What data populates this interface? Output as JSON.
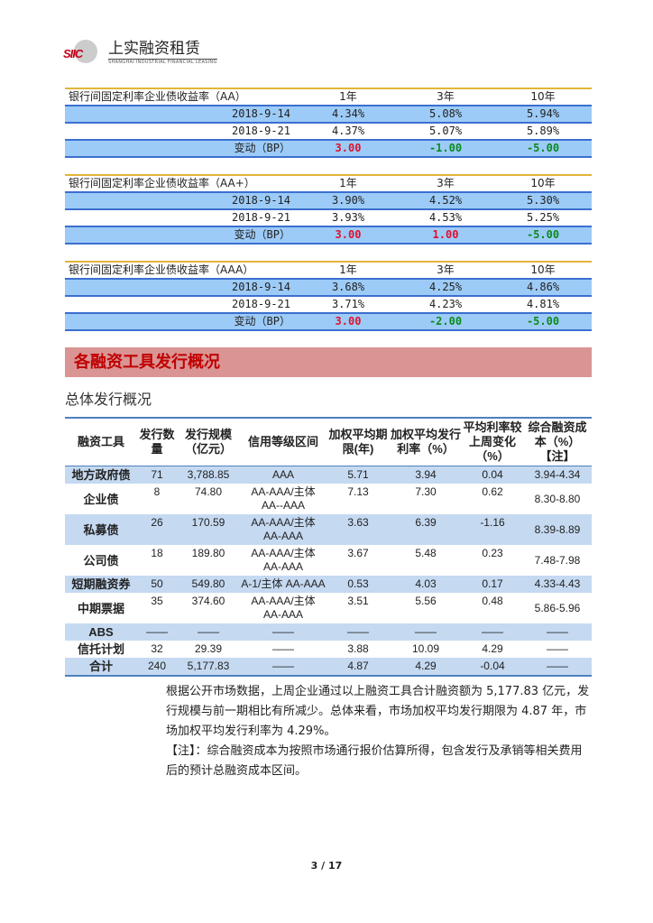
{
  "header": {
    "logo_mark": "SIIC",
    "company": "上实融资租赁",
    "company_en": "SHANGHAI INDUSTRIAL FINANCIAL LEASING"
  },
  "yield_tables": [
    {
      "title": "银行间固定利率企业债收益率（AA）",
      "cols": [
        "1年",
        "3年",
        "10年"
      ],
      "rows": [
        {
          "date": "2018-9-14",
          "v": [
            "4.34%",
            "5.08%",
            "5.94%"
          ]
        },
        {
          "date": "2018-9-21",
          "v": [
            "4.37%",
            "5.07%",
            "5.89%"
          ]
        }
      ],
      "change_label": "变动（BP）",
      "change": [
        "3.00",
        "-1.00",
        "-5.00"
      ]
    },
    {
      "title": "银行间固定利率企业债收益率（AA+）",
      "cols": [
        "1年",
        "3年",
        "10年"
      ],
      "rows": [
        {
          "date": "2018-9-14",
          "v": [
            "3.90%",
            "4.52%",
            "5.30%"
          ]
        },
        {
          "date": "2018-9-21",
          "v": [
            "3.93%",
            "4.53%",
            "5.25%"
          ]
        }
      ],
      "change_label": "变动（BP）",
      "change": [
        "3.00",
        "1.00",
        "-5.00"
      ]
    },
    {
      "title": "银行间固定利率企业债收益率（AAA）",
      "cols": [
        "1年",
        "3年",
        "10年"
      ],
      "rows": [
        {
          "date": "2018-9-14",
          "v": [
            "3.68%",
            "4.25%",
            "4.86%"
          ]
        },
        {
          "date": "2018-9-21",
          "v": [
            "3.71%",
            "4.23%",
            "4.81%"
          ]
        }
      ],
      "change_label": "变动（BP）",
      "change": [
        "3.00",
        "-2.00",
        "-5.00"
      ]
    }
  ],
  "colors": {
    "up": "#e0102c",
    "down": "#0a8a1e",
    "row_blue": "#9dcbf7",
    "section_bg": "#da9494",
    "section_text": "#c00000"
  },
  "section": {
    "title": "各融资工具发行概况",
    "subtitle": "总体发行概况"
  },
  "issuance": {
    "headers": [
      "融资工具",
      "发行数量",
      "发行规模（亿元）",
      "信用等级区间",
      "加权平均期限(年)",
      "加权平均发行利率（%）",
      "平均利率较上周变化（%）",
      "综合融资成本（%）【注】"
    ],
    "rows": [
      [
        "地方政府债",
        "71",
        "3,788.85",
        "AAA",
        "5.71",
        "3.94",
        "0.04",
        "3.94-4.34"
      ],
      [
        "企业债",
        "8",
        "74.80",
        "AA-AAA/主体 AA--AAA",
        "7.13",
        "7.30",
        "0.62",
        "8.30-8.80"
      ],
      [
        "私募债",
        "26",
        "170.59",
        "AA-AAA/主体 AA-AAA",
        "3.63",
        "6.39",
        "-1.16",
        "8.39-8.89"
      ],
      [
        "公司债",
        "18",
        "189.80",
        "AA-AAA/主体 AA-AAA",
        "3.67",
        "5.48",
        "0.23",
        "7.48-7.98"
      ],
      [
        "短期融资券",
        "50",
        "549.80",
        "A-1/主体 AA-AAA",
        "0.53",
        "4.03",
        "0.17",
        "4.33-4.43"
      ],
      [
        "中期票据",
        "35",
        "374.60",
        "AA-AAA/主体 AA-AAA",
        "3.51",
        "5.56",
        "0.48",
        "5.86-5.96"
      ],
      [
        "ABS",
        "——",
        "——",
        "——",
        "——",
        "——",
        "——",
        "——"
      ],
      [
        "信托计划",
        "32",
        "29.39",
        "——",
        "3.88",
        "10.09",
        "4.29",
        "——"
      ],
      [
        "合计",
        "240",
        "5,177.83",
        "——",
        "4.87",
        "4.29",
        "-0.04",
        "——"
      ]
    ]
  },
  "paragraphs": [
    "根据公开市场数据，上周企业通过以上融资工具合计融资额为 5,177.83 亿元，发行规模与前一期相比有所减少。总体来看，市场加权平均发行期限为 4.87 年，市场加权平均发行利率为 4.29%。",
    "【注】：综合融资成本为按照市场通行报价估算所得，包含发行及承销等相关费用后的预计总融资成本区间。"
  ],
  "page_number": "3 / 17"
}
